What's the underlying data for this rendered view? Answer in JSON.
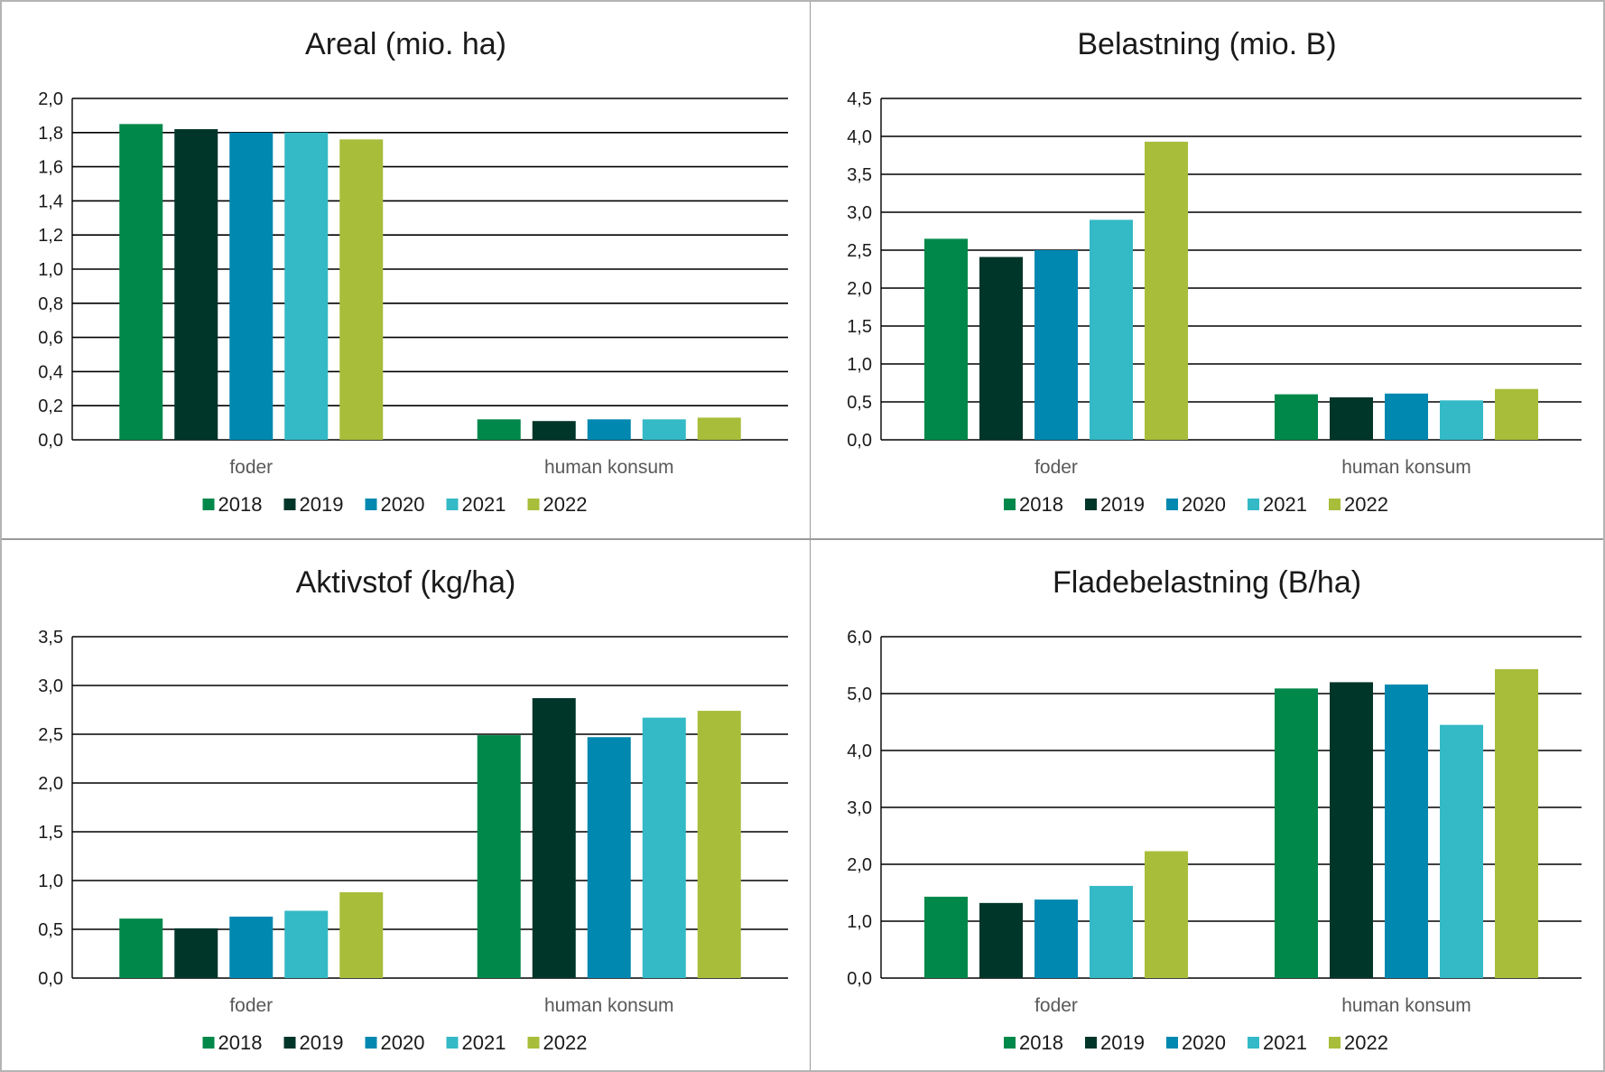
{
  "legend_colors": [
    "#00884a",
    "#00362a",
    "#0088b0",
    "#34b9c6",
    "#a8bd3a"
  ],
  "chart_data": [
    {
      "type": "bar",
      "title": "Areal (mio. ha)",
      "categories": [
        "foder",
        "human konsum"
      ],
      "series": [
        {
          "name": "2018",
          "values": [
            1.85,
            0.12
          ]
        },
        {
          "name": "2019",
          "values": [
            1.82,
            0.11
          ]
        },
        {
          "name": "2020",
          "values": [
            1.8,
            0.12
          ]
        },
        {
          "name": "2021",
          "values": [
            1.8,
            0.12
          ]
        },
        {
          "name": "2022",
          "values": [
            1.76,
            0.13
          ]
        }
      ],
      "ylim": [
        0,
        2
      ],
      "yticks": [
        "0,0",
        "0,2",
        "0,4",
        "0,6",
        "0,8",
        "1,0",
        "1,2",
        "1,4",
        "1,6",
        "1,8",
        "2,0"
      ],
      "grid": true,
      "legend": "bottom"
    },
    {
      "type": "bar",
      "title": "Belastning (mio. B)",
      "categories": [
        "foder",
        "human konsum"
      ],
      "series": [
        {
          "name": "2018",
          "values": [
            2.65,
            0.6
          ]
        },
        {
          "name": "2019",
          "values": [
            2.41,
            0.56
          ]
        },
        {
          "name": "2020",
          "values": [
            2.5,
            0.61
          ]
        },
        {
          "name": "2021",
          "values": [
            2.9,
            0.52
          ]
        },
        {
          "name": "2022",
          "values": [
            3.93,
            0.67
          ]
        }
      ],
      "ylim": [
        0,
        4.5
      ],
      "yticks": [
        "0,0",
        "0,5",
        "1,0",
        "1,5",
        "2,0",
        "2,5",
        "3,0",
        "3,5",
        "4,0",
        "4,5"
      ],
      "grid": true,
      "legend": "bottom"
    },
    {
      "type": "bar",
      "title": "Aktivstof (kg/ha)",
      "categories": [
        "foder",
        "human konsum"
      ],
      "series": [
        {
          "name": "2018",
          "values": [
            0.61,
            2.49
          ]
        },
        {
          "name": "2019",
          "values": [
            0.51,
            2.87
          ]
        },
        {
          "name": "2020",
          "values": [
            0.63,
            2.47
          ]
        },
        {
          "name": "2021",
          "values": [
            0.69,
            2.67
          ]
        },
        {
          "name": "2022",
          "values": [
            0.88,
            2.74
          ]
        }
      ],
      "ylim": [
        0,
        3.5
      ],
      "yticks": [
        "0,0",
        "0,5",
        "1,0",
        "1,5",
        "2,0",
        "2,5",
        "3,0",
        "3,5"
      ],
      "grid": true,
      "legend": "bottom"
    },
    {
      "type": "bar",
      "title": "Fladebelastning (B/ha)",
      "categories": [
        "foder",
        "human konsum"
      ],
      "series": [
        {
          "name": "2018",
          "values": [
            1.43,
            5.09
          ]
        },
        {
          "name": "2019",
          "values": [
            1.32,
            5.2
          ]
        },
        {
          "name": "2020",
          "values": [
            1.38,
            5.16
          ]
        },
        {
          "name": "2021",
          "values": [
            1.62,
            4.45
          ]
        },
        {
          "name": "2022",
          "values": [
            2.23,
            5.43
          ]
        }
      ],
      "ylim": [
        0,
        6
      ],
      "yticks": [
        "0,0",
        "1,0",
        "2,0",
        "3,0",
        "4,0",
        "5,0",
        "6,0"
      ],
      "grid": true,
      "legend": "bottom"
    }
  ]
}
